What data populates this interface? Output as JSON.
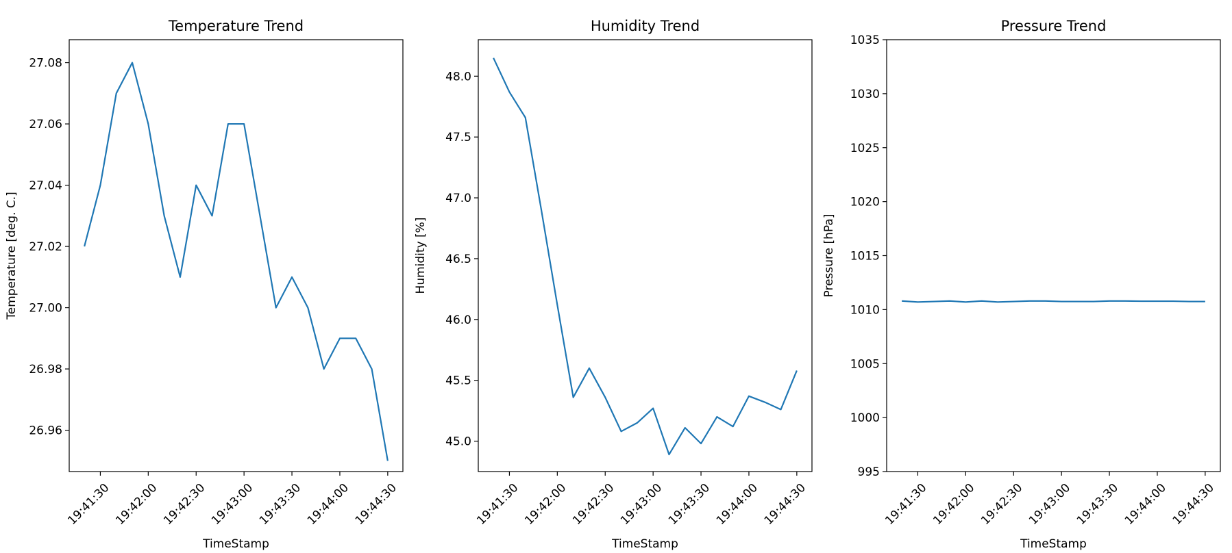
{
  "chart_data": [
    {
      "type": "line",
      "title": "Temperature Trend",
      "xlabel": "TimeStamp",
      "ylabel": "Temperature [deg. C.]",
      "x": [
        "19:41:20",
        "19:41:30",
        "19:41:40",
        "19:41:50",
        "19:42:00",
        "19:42:10",
        "19:42:20",
        "19:42:30",
        "19:42:40",
        "19:42:50",
        "19:43:00",
        "19:43:10",
        "19:43:20",
        "19:43:30",
        "19:43:40",
        "19:43:50",
        "19:44:00",
        "19:44:10",
        "19:44:20",
        "19:44:30"
      ],
      "x_ticks": [
        "19:41:30",
        "19:42:00",
        "19:42:30",
        "19:43:00",
        "19:43:30",
        "19:44:00",
        "19:44:30"
      ],
      "y_ticks": [
        "26.96",
        "26.98",
        "27.00",
        "27.02",
        "27.04",
        "27.06",
        "27.08"
      ],
      "ylim": [
        26.9465,
        27.0875
      ],
      "series": [
        {
          "values": [
            27.02,
            27.04,
            27.07,
            27.08,
            27.06,
            27.03,
            27.01,
            27.04,
            27.03,
            27.06,
            27.06,
            27.03,
            27.0,
            27.01,
            27.0,
            26.98,
            26.99,
            26.99,
            26.98,
            26.95
          ]
        }
      ],
      "color": "#1f77b4"
    },
    {
      "type": "line",
      "title": "Humidity Trend",
      "xlabel": "TimeStamp",
      "ylabel": "Humidity [%]",
      "x": [
        "19:41:20",
        "19:41:30",
        "19:41:40",
        "19:41:50",
        "19:42:00",
        "19:42:10",
        "19:42:20",
        "19:42:30",
        "19:42:40",
        "19:42:50",
        "19:43:00",
        "19:43:10",
        "19:43:20",
        "19:43:30",
        "19:43:40",
        "19:43:50",
        "19:44:00",
        "19:44:10",
        "19:44:20",
        "19:44:30"
      ],
      "x_ticks": [
        "19:41:30",
        "19:42:00",
        "19:42:30",
        "19:43:00",
        "19:43:30",
        "19:44:00",
        "19:44:30"
      ],
      "y_ticks": [
        "45.0",
        "45.5",
        "46.0",
        "46.5",
        "47.0",
        "47.5",
        "48.0"
      ],
      "ylim": [
        44.75,
        48.3
      ],
      "series": [
        {
          "values": [
            48.15,
            47.87,
            47.66,
            46.9,
            46.12,
            45.36,
            45.6,
            45.36,
            45.08,
            45.15,
            45.27,
            44.89,
            45.11,
            44.98,
            45.2,
            45.12,
            45.37,
            45.32,
            45.26,
            45.58
          ]
        }
      ],
      "color": "#1f77b4"
    },
    {
      "type": "line",
      "title": "Pressure Trend",
      "xlabel": "TimeStamp",
      "ylabel": "Pressure [hPa]",
      "x": [
        "19:41:20",
        "19:41:30",
        "19:41:40",
        "19:41:50",
        "19:42:00",
        "19:42:10",
        "19:42:20",
        "19:42:30",
        "19:42:40",
        "19:42:50",
        "19:43:00",
        "19:43:10",
        "19:43:20",
        "19:43:30",
        "19:43:40",
        "19:43:50",
        "19:44:00",
        "19:44:10",
        "19:44:20",
        "19:44:30"
      ],
      "x_ticks": [
        "19:41:30",
        "19:42:00",
        "19:42:30",
        "19:43:00",
        "19:43:30",
        "19:44:00",
        "19:44:30"
      ],
      "y_ticks": [
        "995",
        "1000",
        "1005",
        "1010",
        "1015",
        "1020",
        "1025",
        "1030",
        "1035"
      ],
      "ylim": [
        995,
        1035
      ],
      "series": [
        {
          "values": [
            1010.8,
            1010.7,
            1010.75,
            1010.8,
            1010.7,
            1010.8,
            1010.7,
            1010.75,
            1010.8,
            1010.8,
            1010.75,
            1010.75,
            1010.75,
            1010.8,
            1010.8,
            1010.78,
            1010.78,
            1010.78,
            1010.75,
            1010.75
          ]
        }
      ],
      "color": "#1f77b4"
    }
  ]
}
